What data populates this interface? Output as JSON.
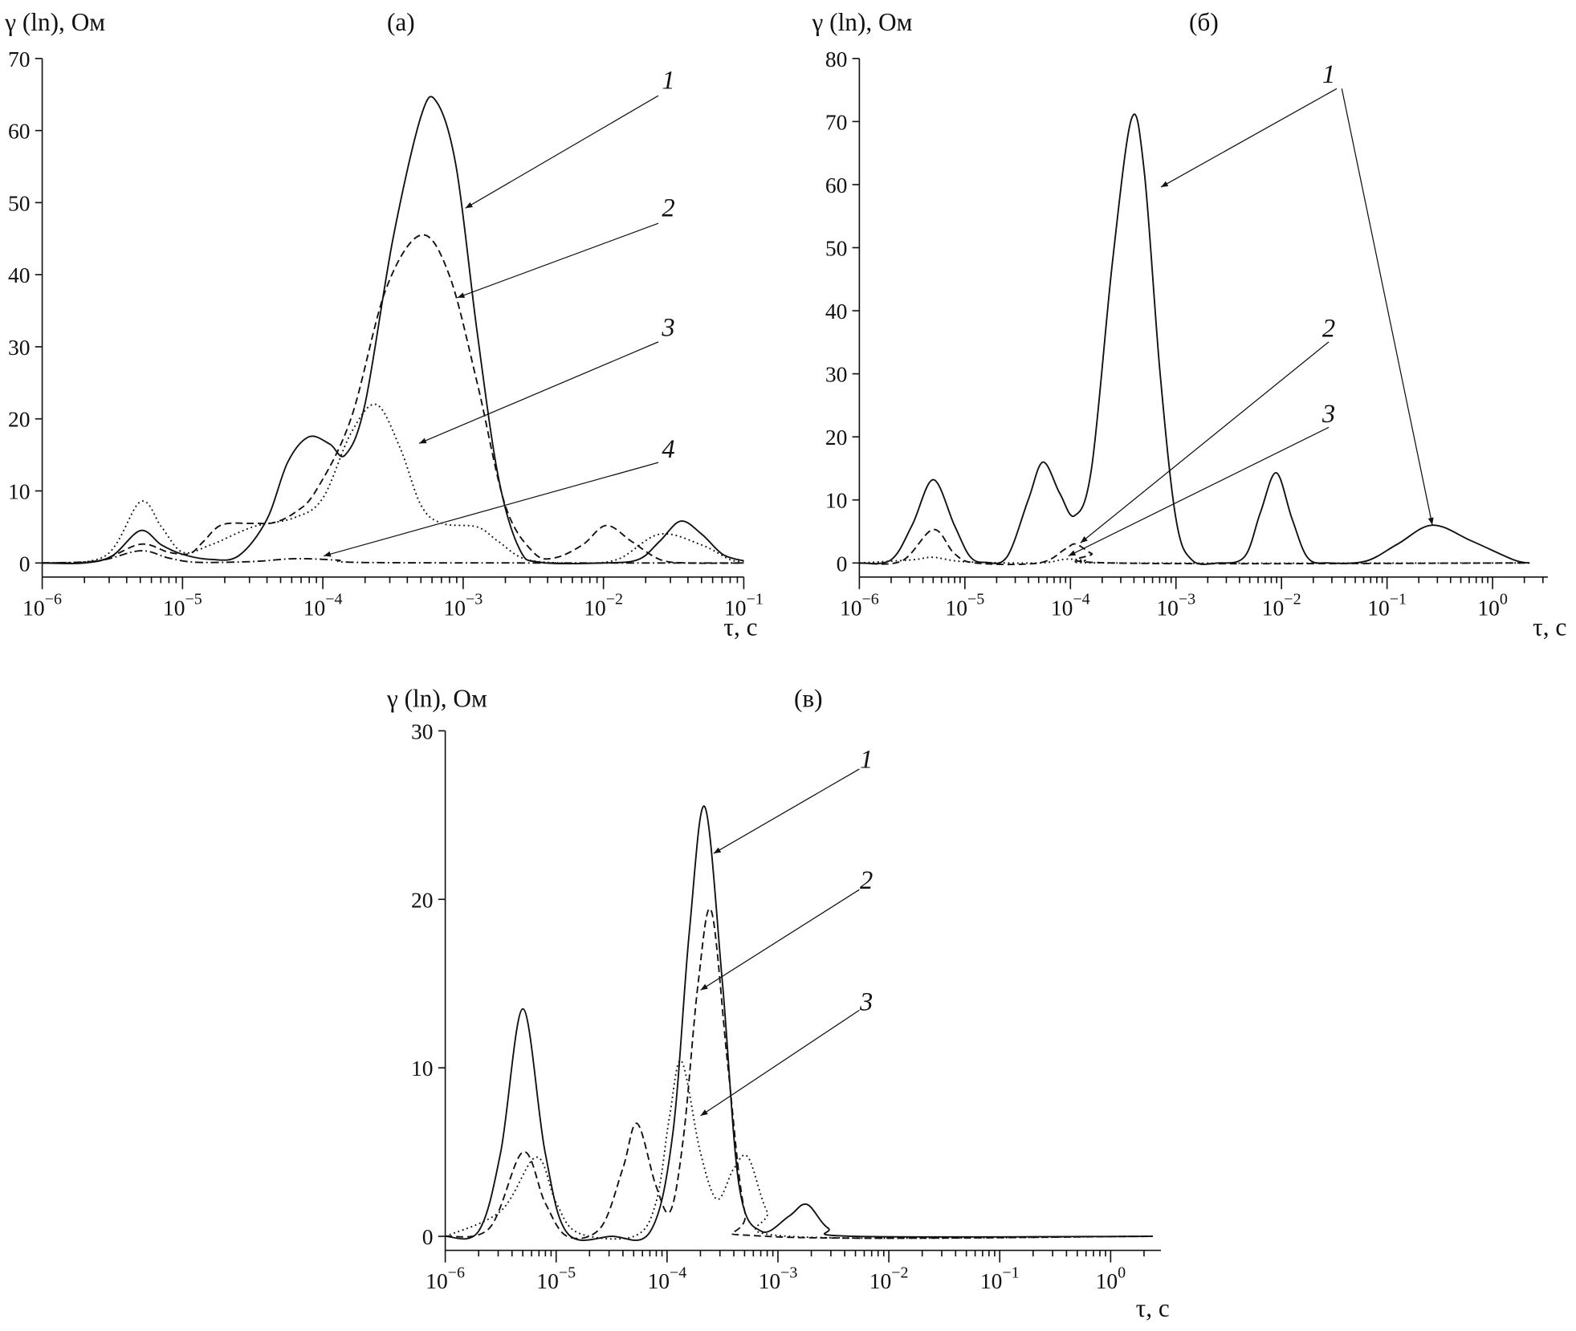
{
  "chart_data": [
    {
      "type": "line",
      "panel_label": "(a)",
      "ylabel": "γ (ln), Ом",
      "xlabel": "τ, с",
      "xscale": "log",
      "xlim_log10": [
        -6,
        -1
      ],
      "ylim": [
        0,
        70
      ],
      "yticks": [
        0,
        10,
        20,
        30,
        40,
        50,
        60,
        70
      ],
      "xticks_exp": [
        -6,
        -5,
        -4,
        -3,
        -2,
        -1
      ],
      "tick_base": "10",
      "annotations": [
        {
          "text": "1",
          "series": 0
        },
        {
          "text": "2",
          "series": 1
        },
        {
          "text": "3",
          "series": 2
        },
        {
          "text": "4",
          "series": 3
        }
      ],
      "series": [
        {
          "name": "1",
          "style": "solid",
          "points_log10tau": [
            [
              -6,
              0
            ],
            [
              -5.7,
              0
            ],
            [
              -5.5,
              1
            ],
            [
              -5.3,
              4.5
            ],
            [
              -5.15,
              2.5
            ],
            [
              -5,
              1.2
            ],
            [
              -4.8,
              0.5
            ],
            [
              -4.6,
              1
            ],
            [
              -4.4,
              6
            ],
            [
              -4.25,
              14
            ],
            [
              -4.1,
              17.5
            ],
            [
              -3.95,
              16.5
            ],
            [
              -3.84,
              15
            ],
            [
              -3.7,
              22
            ],
            [
              -3.5,
              45
            ],
            [
              -3.3,
              62
            ],
            [
              -3.19,
              64
            ],
            [
              -3.05,
              55
            ],
            [
              -2.9,
              32
            ],
            [
              -2.75,
              12
            ],
            [
              -2.6,
              2
            ],
            [
              -2.45,
              0.1
            ],
            [
              -2,
              0
            ],
            [
              -1.75,
              0.5
            ],
            [
              -1.6,
              3
            ],
            [
              -1.45,
              5.8
            ],
            [
              -1.3,
              4
            ],
            [
              -1.15,
              1.2
            ],
            [
              -1,
              0.3
            ]
          ]
        },
        {
          "name": "2",
          "style": "dashed",
          "points_log10tau": [
            [
              -6,
              0
            ],
            [
              -5.6,
              0.3
            ],
            [
              -5.3,
              2.6
            ],
            [
              -5.1,
              1.5
            ],
            [
              -4.95,
              1.3
            ],
            [
              -4.85,
              3
            ],
            [
              -4.72,
              5.3
            ],
            [
              -4.5,
              5.5
            ],
            [
              -4.35,
              5.6
            ],
            [
              -4.2,
              7
            ],
            [
              -4.05,
              10
            ],
            [
              -3.8,
              20
            ],
            [
              -3.55,
              38
            ],
            [
              -3.3,
              45.5
            ],
            [
              -3.1,
              40
            ],
            [
              -2.9,
              25
            ],
            [
              -2.7,
              8
            ],
            [
              -2.5,
              1.5
            ],
            [
              -2.35,
              0.7
            ],
            [
              -2.15,
              2.5
            ],
            [
              -1.98,
              5.2
            ],
            [
              -1.8,
              3
            ],
            [
              -1.6,
              0.5
            ],
            [
              -1.4,
              0
            ],
            [
              -1,
              0
            ]
          ]
        },
        {
          "name": "3",
          "style": "dotted",
          "points_log10tau": [
            [
              -6,
              0
            ],
            [
              -5.55,
              1
            ],
            [
              -5.3,
              8.5
            ],
            [
              -5.15,
              5
            ],
            [
              -5,
              1.5
            ],
            [
              -4.8,
              2.5
            ],
            [
              -4.5,
              5
            ],
            [
              -4.2,
              6.3
            ],
            [
              -4,
              9
            ],
            [
              -3.8,
              18
            ],
            [
              -3.62,
              22
            ],
            [
              -3.45,
              16
            ],
            [
              -3.3,
              8
            ],
            [
              -3.15,
              5.5
            ],
            [
              -2.9,
              5
            ],
            [
              -2.75,
              3
            ],
            [
              -2.55,
              0.5
            ],
            [
              -2.2,
              0
            ],
            [
              -1.9,
              0.5
            ],
            [
              -1.6,
              4
            ],
            [
              -1.3,
              2.5
            ],
            [
              -1.1,
              0.5
            ],
            [
              -1,
              0.2
            ]
          ]
        },
        {
          "name": "4",
          "style": "dashdot",
          "points_log10tau": [
            [
              -6,
              0
            ],
            [
              -5.6,
              0.3
            ],
            [
              -5.3,
              1.7
            ],
            [
              -5.1,
              0.7
            ],
            [
              -4.9,
              0.1
            ],
            [
              -4.5,
              0.2
            ],
            [
              -4.2,
              0.6
            ],
            [
              -3.9,
              0.4
            ],
            [
              -3.6,
              0.05
            ],
            [
              -1,
              0
            ]
          ]
        }
      ]
    },
    {
      "type": "line",
      "panel_label": "(б)",
      "ylabel": "γ (ln), Ом",
      "xlabel": "τ, с",
      "xscale": "log",
      "xlim_log10": [
        -6,
        0.35
      ],
      "ylim": [
        0,
        80
      ],
      "yticks": [
        0,
        10,
        20,
        30,
        40,
        50,
        60,
        70,
        80
      ],
      "xticks_exp": [
        -6,
        -5,
        -4,
        -3,
        -2,
        -1,
        0
      ],
      "tick_base": "10",
      "annotations": [
        {
          "text": "1",
          "series": 0
        },
        {
          "text": "2",
          "series": 1
        },
        {
          "text": "3",
          "series": 2
        }
      ],
      "series": [
        {
          "name": "1",
          "style": "solid",
          "points_log10tau": [
            [
              -6,
              0
            ],
            [
              -5.7,
              0.5
            ],
            [
              -5.5,
              6
            ],
            [
              -5.3,
              13.2
            ],
            [
              -5.1,
              6
            ],
            [
              -4.95,
              1
            ],
            [
              -4.8,
              0.1
            ],
            [
              -4.6,
              1
            ],
            [
              -4.4,
              10
            ],
            [
              -4.26,
              16
            ],
            [
              -4.1,
              11
            ],
            [
              -3.96,
              7.5
            ],
            [
              -3.8,
              15
            ],
            [
              -3.6,
              48
            ],
            [
              -3.42,
              70.5
            ],
            [
              -3.3,
              62
            ],
            [
              -3.15,
              30
            ],
            [
              -3,
              7
            ],
            [
              -2.85,
              0.5
            ],
            [
              -2.6,
              0
            ],
            [
              -2.35,
              1
            ],
            [
              -2.2,
              8
            ],
            [
              -2.05,
              14.3
            ],
            [
              -1.9,
              7
            ],
            [
              -1.75,
              0.8
            ],
            [
              -1.55,
              0
            ],
            [
              -1.2,
              0.3
            ],
            [
              -0.9,
              3
            ],
            [
              -0.57,
              6
            ],
            [
              -0.2,
              3.5
            ],
            [
              0.2,
              0.5
            ],
            [
              0.35,
              0
            ]
          ]
        },
        {
          "name": "2",
          "style": "dashed",
          "points_log10tau": [
            [
              -6,
              0
            ],
            [
              -5.6,
              0.3
            ],
            [
              -5.3,
              5.3
            ],
            [
              -5.1,
              1.5
            ],
            [
              -4.9,
              0
            ],
            [
              -4.3,
              0
            ],
            [
              -4.05,
              2.2
            ],
            [
              -3.95,
              3
            ],
            [
              -3.8,
              1.5
            ],
            [
              -3.6,
              0
            ],
            [
              0.35,
              0
            ]
          ]
        },
        {
          "name": "3",
          "style": "dotted",
          "points_log10tau": [
            [
              -6,
              0
            ],
            [
              -5.5,
              0.5
            ],
            [
              -5.3,
              0.9
            ],
            [
              -5,
              0.2
            ],
            [
              -4.3,
              0
            ],
            [
              -4.05,
              0.6
            ],
            [
              -3.85,
              0.4
            ],
            [
              -3.6,
              0
            ],
            [
              0.35,
              0
            ]
          ]
        }
      ]
    },
    {
      "type": "line",
      "panel_label": "(в)",
      "ylabel": "γ (ln), Ом",
      "xlabel": "τ, с",
      "xscale": "log",
      "xlim_log10": [
        -6,
        0.38
      ],
      "ylim": [
        0,
        30
      ],
      "yticks": [
        0,
        10,
        20,
        30
      ],
      "xticks_exp": [
        -6,
        -5,
        -4,
        -3,
        -2,
        -1,
        0
      ],
      "tick_base": "10",
      "annotations": [
        {
          "text": "1",
          "series": 0
        },
        {
          "text": "2",
          "series": 1
        },
        {
          "text": "3",
          "series": 2
        }
      ],
      "series": [
        {
          "name": "1",
          "style": "solid",
          "points_log10tau": [
            [
              -6,
              0
            ],
            [
              -5.7,
              0.3
            ],
            [
              -5.5,
              5
            ],
            [
              -5.3,
              13.5
            ],
            [
              -5.1,
              5
            ],
            [
              -4.9,
              0.2
            ],
            [
              -4.5,
              0
            ],
            [
              -4.15,
              0.3
            ],
            [
              -3.95,
              6
            ],
            [
              -3.8,
              18
            ],
            [
              -3.66,
              25.5
            ],
            [
              -3.5,
              15
            ],
            [
              -3.35,
              3
            ],
            [
              -3.15,
              0.3
            ],
            [
              -2.9,
              1.2
            ],
            [
              -2.74,
              1.9
            ],
            [
              -2.55,
              0.5
            ],
            [
              -2.3,
              0
            ],
            [
              0.38,
              0
            ]
          ]
        },
        {
          "name": "2",
          "style": "dashed",
          "points_log10tau": [
            [
              -6,
              0
            ],
            [
              -5.6,
              0.5
            ],
            [
              -5.3,
              5
            ],
            [
              -5.1,
              2
            ],
            [
              -4.9,
              0
            ],
            [
              -4.6,
              0.5
            ],
            [
              -4.4,
              4
            ],
            [
              -4.27,
              6.7
            ],
            [
              -4.1,
              3
            ],
            [
              -3.97,
              1.5
            ],
            [
              -3.85,
              6
            ],
            [
              -3.72,
              15
            ],
            [
              -3.6,
              19.3
            ],
            [
              -3.45,
              10
            ],
            [
              -3.3,
              1.5
            ],
            [
              -3.1,
              0
            ],
            [
              0.38,
              0
            ]
          ]
        },
        {
          "name": "3",
          "style": "dotted",
          "points_log10tau": [
            [
              -6,
              0
            ],
            [
              -5.5,
              1.5
            ],
            [
              -5.18,
              4.7
            ],
            [
              -5,
              2
            ],
            [
              -4.8,
              0.2
            ],
            [
              -4.3,
              0
            ],
            [
              -4.1,
              2
            ],
            [
              -3.98,
              7
            ],
            [
              -3.87,
              10.4
            ],
            [
              -3.7,
              5
            ],
            [
              -3.55,
              2.2
            ],
            [
              -3.4,
              4
            ],
            [
              -3.27,
              4.7
            ],
            [
              -3.1,
              1.5
            ],
            [
              -2.9,
              0
            ],
            [
              0.38,
              0
            ]
          ]
        }
      ]
    }
  ]
}
